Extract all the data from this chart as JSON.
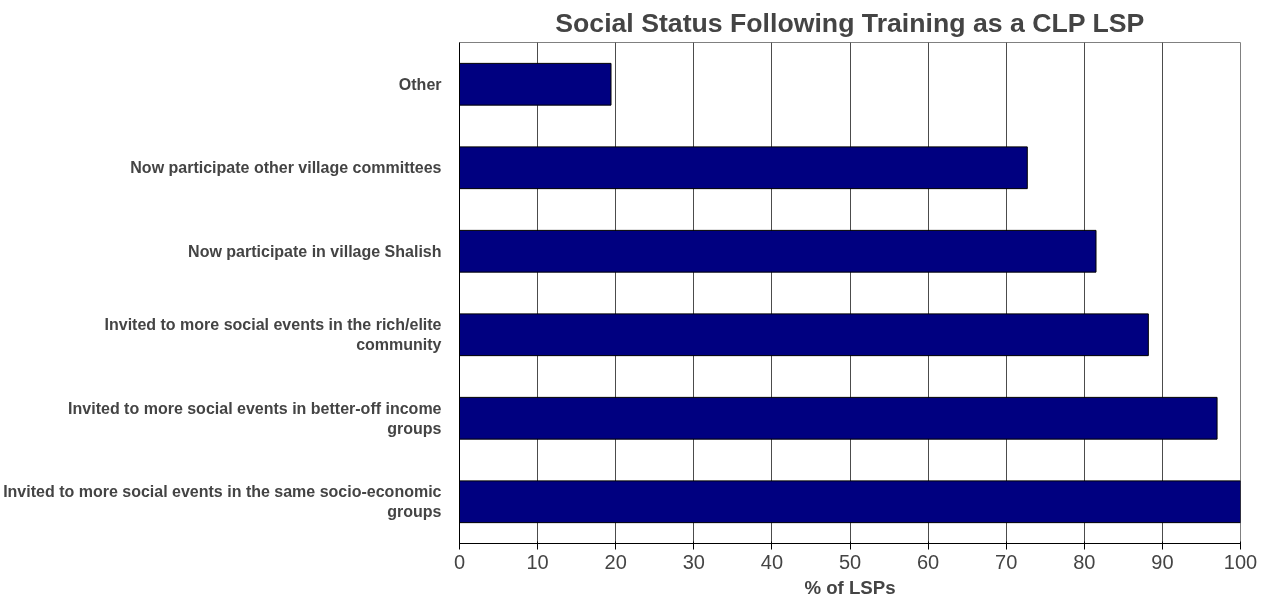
{
  "chart_data": {
    "type": "bar",
    "orientation": "horizontal",
    "title": "Social Status Following Training as a CLP LSP",
    "xlabel": "% of LSPs",
    "categories": [
      "Other",
      "Now participate other village committees",
      "Now participate in village Shalish",
      "Invited to more social events in the rich/elite community",
      "Invited to more social events in better-off income groups",
      "Invited to more social events in the same socio-economic groups"
    ],
    "values": [
      19.4,
      72.7,
      81.5,
      88.2,
      97,
      100
    ],
    "color": "#000080",
    "xlim": [
      0,
      100
    ],
    "xticks": [
      0,
      10,
      20,
      30,
      40,
      50,
      60,
      70,
      80,
      90,
      100
    ],
    "grid": "x"
  }
}
